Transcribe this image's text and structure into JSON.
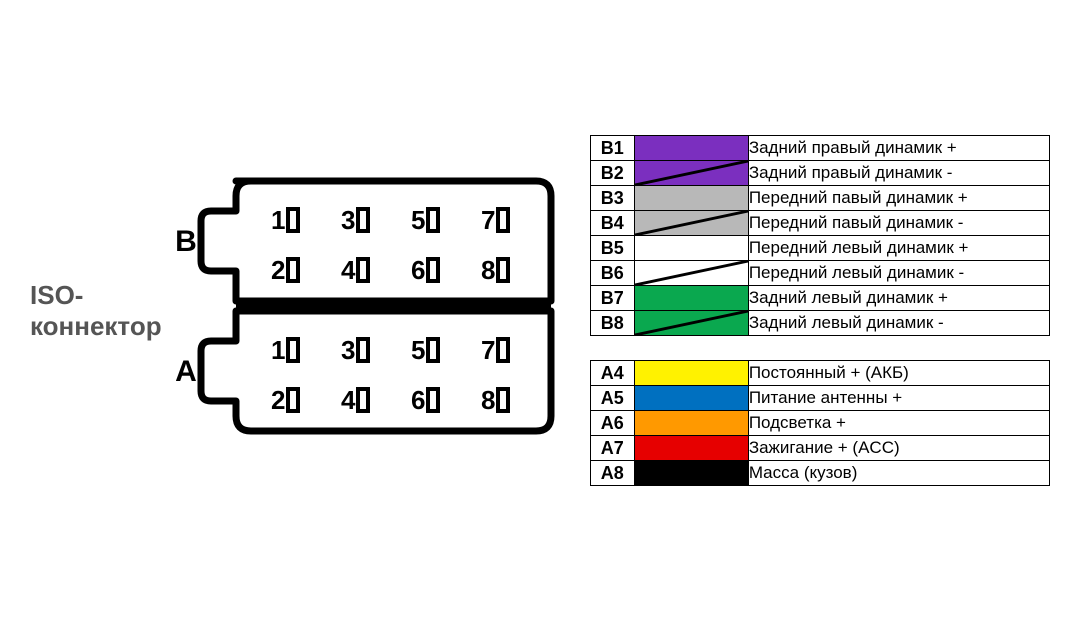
{
  "iso_label": "ISO-коннектор",
  "connector": {
    "section_b_label": "B",
    "section_a_label": "A",
    "row_b1": [
      "1",
      "3",
      "5",
      "7"
    ],
    "row_b2": [
      "2",
      "4",
      "6",
      "8"
    ],
    "row_a1": [
      "1",
      "3",
      "5",
      "7"
    ],
    "row_a2": [
      "2",
      "4",
      "6",
      "8"
    ]
  },
  "table_b": [
    {
      "id": "B1",
      "color": "#7b2fbf",
      "stripe": false,
      "desc": "Задний правый динамик +"
    },
    {
      "id": "B2",
      "color": "#7b2fbf",
      "stripe": true,
      "desc": "Задний правый динамик -"
    },
    {
      "id": "B3",
      "color": "#b8b8b8",
      "stripe": false,
      "desc": "Передний павый динамик +"
    },
    {
      "id": "B4",
      "color": "#b8b8b8",
      "stripe": true,
      "desc": "Передний павый динамик -"
    },
    {
      "id": "B5",
      "color": "#ffffff",
      "stripe": false,
      "desc": "Передний левый динамик +"
    },
    {
      "id": "B6",
      "color": "#ffffff",
      "stripe": true,
      "desc": "Передний левый динамик -"
    },
    {
      "id": "B7",
      "color": "#0aa84f",
      "stripe": false,
      "desc": "Задний левый динамик +"
    },
    {
      "id": "B8",
      "color": "#0aa84f",
      "stripe": true,
      "desc": "Задний левый динамик -"
    }
  ],
  "table_a": [
    {
      "id": "A4",
      "color": "#fff200",
      "stripe": false,
      "desc": "Постоянный + (АКБ)"
    },
    {
      "id": "A5",
      "color": "#0070c0",
      "stripe": false,
      "desc": "Питание антенны +"
    },
    {
      "id": "A6",
      "color": "#ff9900",
      "stripe": false,
      "desc": "Подсветка +"
    },
    {
      "id": "A7",
      "color": "#e60000",
      "stripe": false,
      "desc": "Зажигание + (ACC)"
    },
    {
      "id": "A8",
      "color": "#000000",
      "stripe": false,
      "desc": "Масса (кузов)"
    }
  ],
  "styling": {
    "border_color": "#000000",
    "border_width": 1,
    "connector_stroke": "#000000",
    "connector_stroke_width": 7,
    "pin_font_size": 26,
    "pin_font_weight": "bold",
    "label_font_size": 30,
    "iso_font_size": 26,
    "stripe_color": "#000000",
    "stripe_width": 3,
    "background": "#ffffff",
    "table_cell_height": 25
  }
}
